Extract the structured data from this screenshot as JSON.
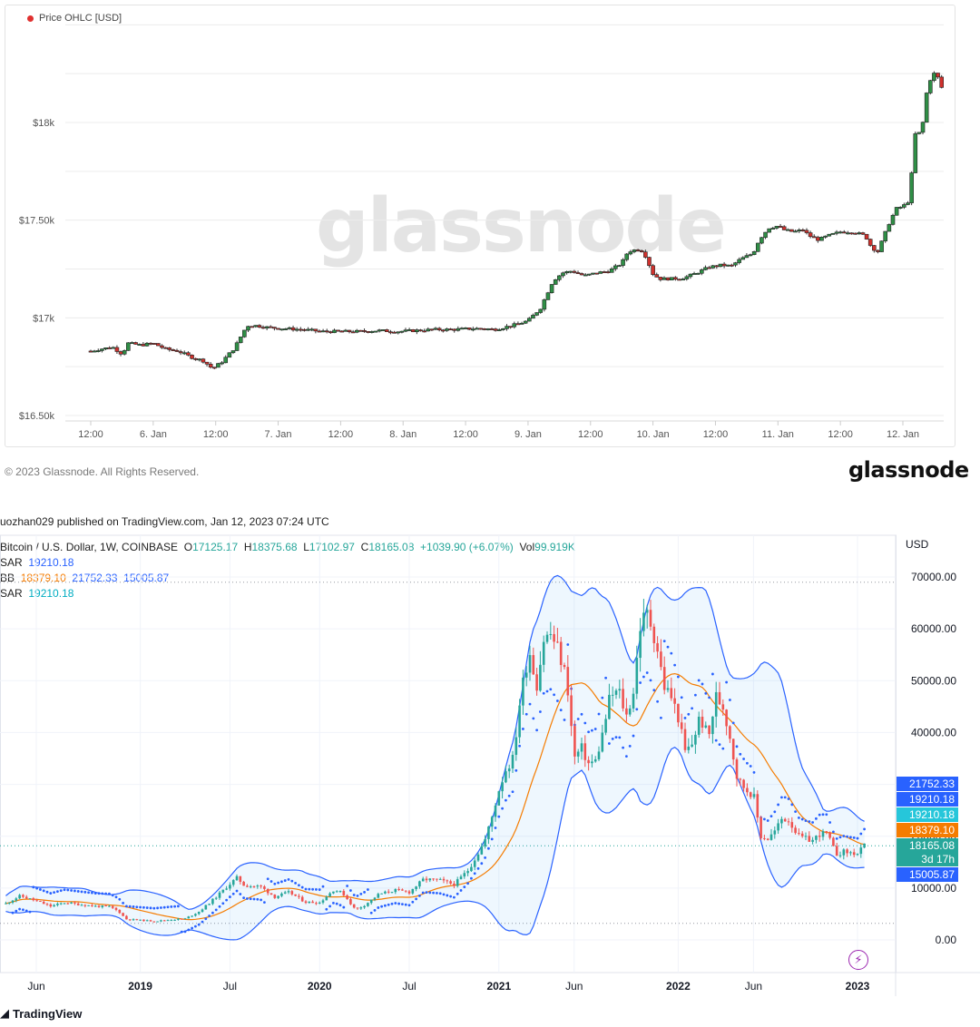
{
  "glassnode": {
    "legend": "Price OHLC [USD]",
    "watermark": "glassnode",
    "copyright": "© 2023 Glassnode. All Rights Reserved.",
    "logo": "glassnode",
    "legend_dot_color": "#e0302f"
  },
  "tradingview": {
    "published": "uozhan029 published on TradingView.com, Jan 12, 2023 07:24 UTC",
    "symbol_line": {
      "symbol": "Bitcoin / U.S. Dollar, 1W, COINBASE",
      "o_label": "O",
      "o": "17125.17",
      "h_label": "H",
      "h": "18375.68",
      "l_label": "L",
      "l": "17102.97",
      "c_label": "C",
      "c": "18165.08",
      "change": "+1039.90 (+6.07%)",
      "vol_label": "Vol",
      "vol": "99.919K"
    },
    "sar1": {
      "label": "SAR",
      "value": "19210.18"
    },
    "bb": {
      "label": "BB",
      "basis": "18379.10",
      "upper": "21752.33",
      "lower": "15005.87"
    },
    "sar2": {
      "label": "SAR",
      "value": "19210.18"
    },
    "currency": "USD",
    "price_tags": [
      {
        "text": "21752.33",
        "color": "#2962ff"
      },
      {
        "text": "19210.18",
        "color": "#2962ff"
      },
      {
        "text": "19210.18",
        "color": "#26c6da"
      },
      {
        "text": "18379.10",
        "color": "#f57c00"
      },
      {
        "text": "18165.08",
        "color": "#26a69a"
      },
      {
        "text": "3d 17h",
        "color": "#26a69a"
      },
      {
        "text": "15005.87",
        "color": "#2962ff"
      }
    ],
    "brand": "TradingView",
    "bolt_icon": "lightning-icon"
  },
  "chart_data": [
    {
      "type": "candlestick",
      "title": "Price OHLC [USD]",
      "y_ticks": [
        "$16.50k",
        "$17k",
        "$17.50k",
        "$18k"
      ],
      "ylim": [
        16500,
        18500
      ],
      "x_ticks": [
        "12:00",
        "6. Jan",
        "12:00",
        "7. Jan",
        "12:00",
        "8. Jan",
        "12:00",
        "9. Jan",
        "12:00",
        "10. Jan",
        "12:00",
        "11. Jan",
        "12:00",
        "12. Jan"
      ],
      "x_tick_pos": [
        0,
        2,
        4,
        6,
        8,
        10,
        12,
        14,
        16,
        18,
        20,
        22,
        24,
        26
      ],
      "x_range": [
        -0.3,
        27.4
      ],
      "up_color": "#2f8f46",
      "down_color": "#d0312d",
      "close_path": [
        [
          0,
          16830
        ],
        [
          0.3,
          16840
        ],
        [
          0.7,
          16850
        ],
        [
          1.0,
          16815
        ],
        [
          1.2,
          16870
        ],
        [
          1.6,
          16860
        ],
        [
          2.0,
          16870
        ],
        [
          2.4,
          16840
        ],
        [
          2.8,
          16830
        ],
        [
          3.2,
          16800
        ],
        [
          3.6,
          16780
        ],
        [
          3.9,
          16740
        ],
        [
          4.2,
          16775
        ],
        [
          4.6,
          16845
        ],
        [
          5.0,
          16960
        ],
        [
          5.3,
          16960
        ],
        [
          5.7,
          16950
        ],
        [
          6.2,
          16945
        ],
        [
          6.8,
          16940
        ],
        [
          7.4,
          16930
        ],
        [
          8.0,
          16930
        ],
        [
          8.6,
          16930
        ],
        [
          9.2,
          16935
        ],
        [
          9.8,
          16930
        ],
        [
          10.4,
          16935
        ],
        [
          11.0,
          16940
        ],
        [
          11.6,
          16940
        ],
        [
          12.2,
          16945
        ],
        [
          12.6,
          16945
        ],
        [
          12.9,
          16940
        ],
        [
          13.2,
          16950
        ],
        [
          13.6,
          16965
        ],
        [
          14.0,
          16985
        ],
        [
          14.4,
          17050
        ],
        [
          14.8,
          17190
        ],
        [
          15.1,
          17230
        ],
        [
          15.4,
          17240
        ],
        [
          15.8,
          17215
        ],
        [
          16.2,
          17230
        ],
        [
          16.6,
          17240
        ],
        [
          17.0,
          17280
        ],
        [
          17.2,
          17340
        ],
        [
          17.5,
          17350
        ],
        [
          17.7,
          17340
        ],
        [
          18.0,
          17225
        ],
        [
          18.2,
          17200
        ],
        [
          18.6,
          17200
        ],
        [
          19.0,
          17205
        ],
        [
          19.4,
          17230
        ],
        [
          19.8,
          17260
        ],
        [
          20.2,
          17270
        ],
        [
          20.5,
          17265
        ],
        [
          20.8,
          17300
        ],
        [
          21.2,
          17330
        ],
        [
          21.4,
          17400
        ],
        [
          21.7,
          17460
        ],
        [
          22.0,
          17470
        ],
        [
          22.2,
          17450
        ],
        [
          22.5,
          17440
        ],
        [
          22.8,
          17450
        ],
        [
          23.0,
          17420
        ],
        [
          23.3,
          17400
        ],
        [
          23.6,
          17420
        ],
        [
          24.0,
          17440
        ],
        [
          24.4,
          17440
        ],
        [
          24.8,
          17420
        ],
        [
          25.0,
          17360
        ],
        [
          25.2,
          17340
        ],
        [
          25.4,
          17420
        ],
        [
          25.6,
          17500
        ],
        [
          25.8,
          17560
        ],
        [
          26.0,
          17570
        ],
        [
          26.2,
          17600
        ],
        [
          26.4,
          17940
        ],
        [
          26.6,
          17950
        ],
        [
          26.8,
          18200
        ],
        [
          27.0,
          18250
        ],
        [
          27.1,
          18240
        ],
        [
          27.2,
          18190
        ],
        [
          27.35,
          18150
        ]
      ]
    },
    {
      "type": "candlestick",
      "title": "Bitcoin / U.S. Dollar, 1W, COINBASE",
      "y_ticks": [
        "0.00",
        "10000.00",
        "20000.00",
        "30000.00",
        "40000.00",
        "50000.00",
        "60000.00",
        "70000.00"
      ],
      "y_tick_values": [
        0,
        10000,
        20000,
        30000,
        40000,
        50000,
        60000,
        70000
      ],
      "ylim": [
        -7000,
        76000
      ],
      "x_ticks": [
        "Jun",
        "2019",
        "Jul",
        "2020",
        "Jul",
        "2021",
        "Jun",
        "2022",
        "Jun",
        "2023"
      ],
      "x_tick_pos": [
        2018.42,
        2019.0,
        2019.5,
        2020.0,
        2020.5,
        2021.0,
        2021.42,
        2022.0,
        2022.42,
        2023.0
      ],
      "x_range": [
        2018.25,
        2023.21
      ],
      "indicators": [
        "SAR",
        "BB",
        "SAR"
      ],
      "dotted_levels": [
        69000,
        3200,
        18165.08
      ],
      "close_path": [
        [
          2018.25,
          7000
        ],
        [
          2018.33,
          8500
        ],
        [
          2018.42,
          7500
        ],
        [
          2018.5,
          6500
        ],
        [
          2018.58,
          7200
        ],
        [
          2018.67,
          6800
        ],
        [
          2018.75,
          6500
        ],
        [
          2018.83,
          6400
        ],
        [
          2018.88,
          5500
        ],
        [
          2018.92,
          4000
        ],
        [
          2019.0,
          3800
        ],
        [
          2019.08,
          3600
        ],
        [
          2019.17,
          3900
        ],
        [
          2019.25,
          4100
        ],
        [
          2019.33,
          5500
        ],
        [
          2019.42,
          8200
        ],
        [
          2019.5,
          10800
        ],
        [
          2019.54,
          12000
        ],
        [
          2019.58,
          10500
        ],
        [
          2019.67,
          10300
        ],
        [
          2019.75,
          8300
        ],
        [
          2019.83,
          9200
        ],
        [
          2019.92,
          7300
        ],
        [
          2020.0,
          7200
        ],
        [
          2020.08,
          9700
        ],
        [
          2020.13,
          9000
        ],
        [
          2020.2,
          5800
        ],
        [
          2020.25,
          6700
        ],
        [
          2020.33,
          8800
        ],
        [
          2020.42,
          9600
        ],
        [
          2020.5,
          9200
        ],
        [
          2020.58,
          11700
        ],
        [
          2020.67,
          11500
        ],
        [
          2020.75,
          10700
        ],
        [
          2020.83,
          13500
        ],
        [
          2020.88,
          16500
        ],
        [
          2020.92,
          19000
        ],
        [
          2020.96,
          23500
        ],
        [
          2021.0,
          29000
        ],
        [
          2021.04,
          33000
        ],
        [
          2021.08,
          35000
        ],
        [
          2021.12,
          47000
        ],
        [
          2021.17,
          56000
        ],
        [
          2021.21,
          49000
        ],
        [
          2021.25,
          58000
        ],
        [
          2021.29,
          59000
        ],
        [
          2021.33,
          56000
        ],
        [
          2021.38,
          50000
        ],
        [
          2021.42,
          35000
        ],
        [
          2021.46,
          37000
        ],
        [
          2021.5,
          34000
        ],
        [
          2021.54,
          34500
        ],
        [
          2021.58,
          40000
        ],
        [
          2021.62,
          47000
        ],
        [
          2021.67,
          48000
        ],
        [
          2021.71,
          43000
        ],
        [
          2021.75,
          48000
        ],
        [
          2021.79,
          61000
        ],
        [
          2021.83,
          63000
        ],
        [
          2021.88,
          57000
        ],
        [
          2021.92,
          49000
        ],
        [
          2021.96,
          47000
        ],
        [
          2022.0,
          43000
        ],
        [
          2022.04,
          36000
        ],
        [
          2022.08,
          38000
        ],
        [
          2022.12,
          43000
        ],
        [
          2022.17,
          39000
        ],
        [
          2022.21,
          47000
        ],
        [
          2022.25,
          45000
        ],
        [
          2022.29,
          39000
        ],
        [
          2022.33,
          31000
        ],
        [
          2022.38,
          29000
        ],
        [
          2022.42,
          28000
        ],
        [
          2022.46,
          20000
        ],
        [
          2022.5,
          19500
        ],
        [
          2022.54,
          21000
        ],
        [
          2022.58,
          23500
        ],
        [
          2022.62,
          23000
        ],
        [
          2022.67,
          20000
        ],
        [
          2022.71,
          19500
        ],
        [
          2022.75,
          19200
        ],
        [
          2022.79,
          20500
        ],
        [
          2022.83,
          20500
        ],
        [
          2022.88,
          16500
        ],
        [
          2022.92,
          17000
        ],
        [
          2022.96,
          16800
        ],
        [
          2023.0,
          16600
        ],
        [
          2023.04,
          18165
        ]
      ]
    }
  ]
}
